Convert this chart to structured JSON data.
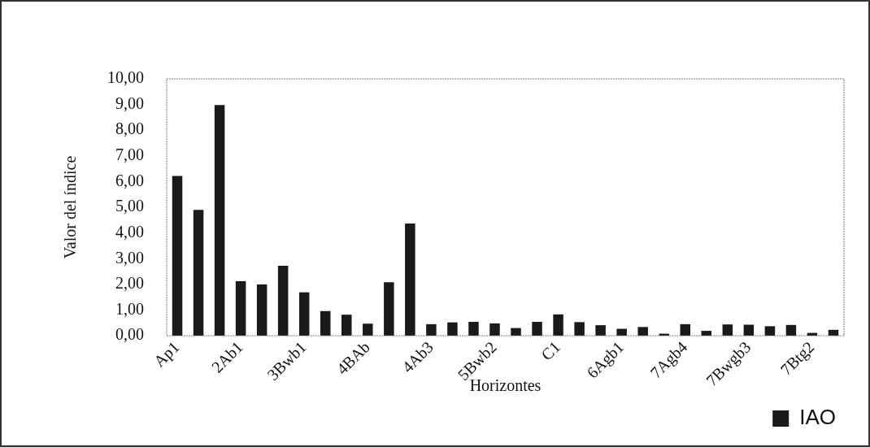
{
  "chart_data": {
    "type": "bar",
    "xlabel": "Horizontes",
    "ylabel": "Valor del índice",
    "categories": [
      "Ap1",
      null,
      null,
      "2Ab1",
      null,
      null,
      "3Bwb1",
      null,
      null,
      "4BAb",
      null,
      null,
      "4Ab3",
      null,
      null,
      "5Bwb2",
      null,
      null,
      "C1",
      null,
      null,
      "6Agb1",
      null,
      null,
      "7Agb4",
      null,
      null,
      "7Bwgb3",
      null,
      null,
      "7Btg2",
      null
    ],
    "series": [
      {
        "name": "IAO",
        "color": "#1a1a1a",
        "values": [
          6.22,
          4.9,
          8.98,
          2.12,
          2.0,
          2.72,
          1.69,
          0.96,
          0.82,
          0.47,
          2.08,
          4.37,
          0.45,
          0.52,
          0.54,
          0.48,
          0.3,
          0.54,
          0.83,
          0.53,
          0.41,
          0.27,
          0.34,
          0.08,
          0.45,
          0.19,
          0.44,
          0.43,
          0.37,
          0.42,
          0.11,
          0.23
        ]
      }
    ],
    "ylim": [
      0,
      10
    ],
    "yticks": [
      {
        "value": 0,
        "label": "0,00"
      },
      {
        "value": 1,
        "label": "1,00"
      },
      {
        "value": 2,
        "label": "2,00"
      },
      {
        "value": 3,
        "label": "3,00"
      },
      {
        "value": 4,
        "label": "4,00"
      },
      {
        "value": 5,
        "label": "5,00"
      },
      {
        "value": 6,
        "label": "6,00"
      },
      {
        "value": 7,
        "label": "7,00"
      },
      {
        "value": 8,
        "label": "8,00"
      },
      {
        "value": 9,
        "label": "9,00"
      },
      {
        "value": 10,
        "label": "10,00"
      }
    ],
    "grid": false,
    "legend": "bottom right"
  }
}
